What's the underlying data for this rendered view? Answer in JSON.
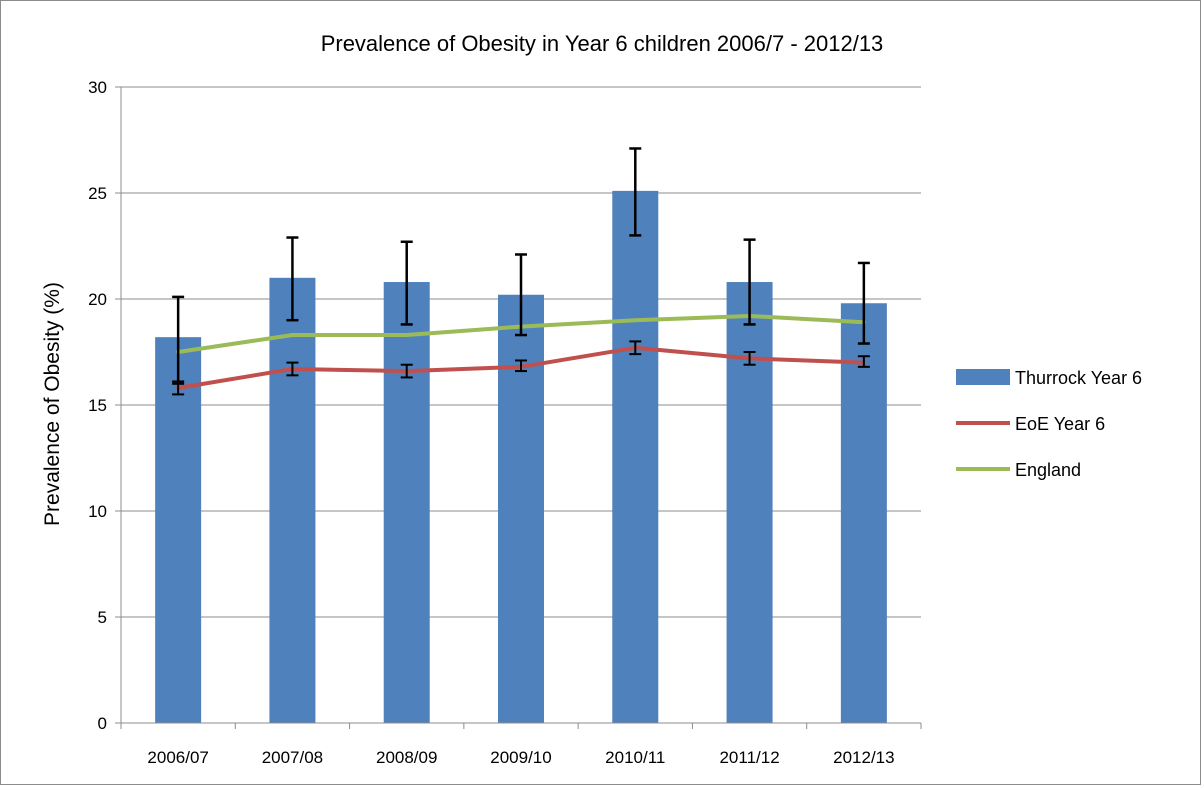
{
  "chart_data": {
    "type": "bar",
    "title": "Prevalence of Obesity in Year 6 children 2006/7 - 2012/13",
    "xlabel": "",
    "ylabel": "Prevalence of Obesity (%)",
    "ylim": [
      0,
      30
    ],
    "yticks": [
      0,
      5,
      10,
      15,
      20,
      25,
      30
    ],
    "grid": true,
    "legend_position": "right",
    "categories": [
      "2006/07",
      "2007/08",
      "2008/09",
      "2009/10",
      "2010/11",
      "2011/12",
      "2012/13"
    ],
    "series": [
      {
        "name": "Thurrock Year 6",
        "type": "bar",
        "color": "#4f81bd",
        "values": [
          18.2,
          21.0,
          20.8,
          20.2,
          25.1,
          20.8,
          19.8
        ],
        "error_low": [
          16.1,
          19.0,
          18.8,
          18.3,
          23.0,
          18.8,
          17.9
        ],
        "error_high": [
          20.1,
          22.9,
          22.7,
          22.1,
          27.1,
          22.8,
          21.7
        ]
      },
      {
        "name": "EoE Year 6",
        "type": "line",
        "color": "#c0504d",
        "values": [
          15.8,
          16.7,
          16.6,
          16.8,
          17.7,
          17.2,
          17.0
        ],
        "error_low": [
          15.5,
          16.4,
          16.3,
          16.6,
          17.4,
          16.9,
          16.8
        ],
        "error_high": [
          16.0,
          17.0,
          16.9,
          17.1,
          18.0,
          17.5,
          17.3
        ]
      },
      {
        "name": "England",
        "type": "line",
        "color": "#9bbb59",
        "values": [
          17.5,
          18.3,
          18.3,
          18.7,
          19.0,
          19.2,
          18.9
        ]
      }
    ]
  }
}
